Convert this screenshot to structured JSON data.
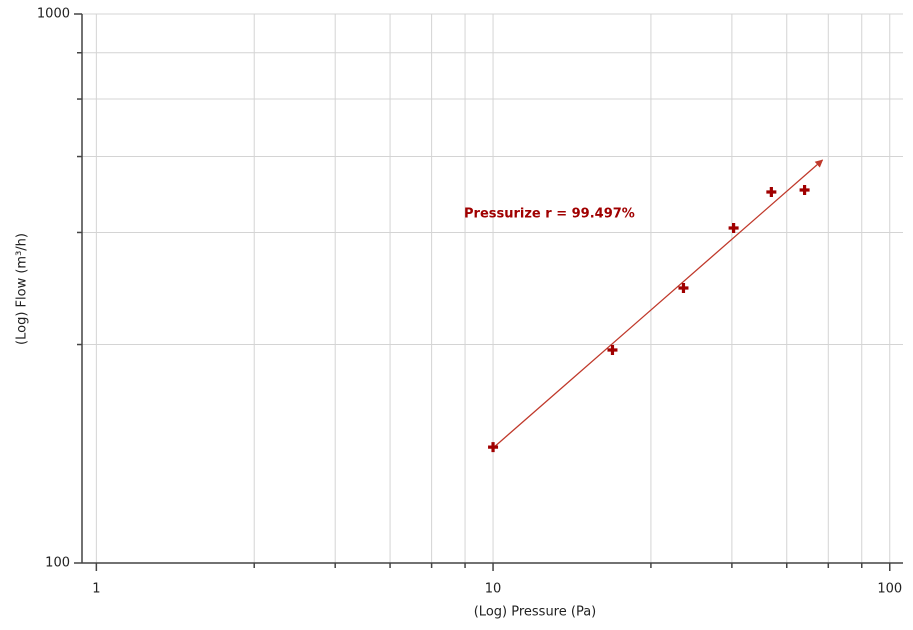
{
  "chart_data": {
    "type": "scatter",
    "x_label": "(Log) Pressure (Pa)",
    "y_label": "(Log) Flow (m³/h)",
    "annotation": "Pressurize r = 99.497%",
    "x": [
      10,
      20,
      30.2,
      40.4,
      50.3,
      61
    ],
    "series": [
      {
        "color": "#a00000",
        "values": [
          162.6,
          244.3,
          316.9,
          407.6,
          474,
          478
        ]
      }
    ],
    "fit": {
      "color": "#c0392b",
      "x": [
        10,
        67.7
      ],
      "y": [
        162,
        542
      ]
    },
    "log_x": true,
    "log_y": true,
    "grid": true,
    "xlim": [
      0.92,
      108
    ],
    "ylim": [
      100,
      1000
    ],
    "xticks": [
      1,
      10,
      100
    ],
    "yticks": [
      100,
      1000
    ],
    "xminor": [
      2.5,
      4,
      5.5,
      7,
      8.5,
      25,
      40,
      55,
      70,
      85
    ],
    "yminor": [
      250,
      400,
      550,
      700,
      850
    ]
  }
}
